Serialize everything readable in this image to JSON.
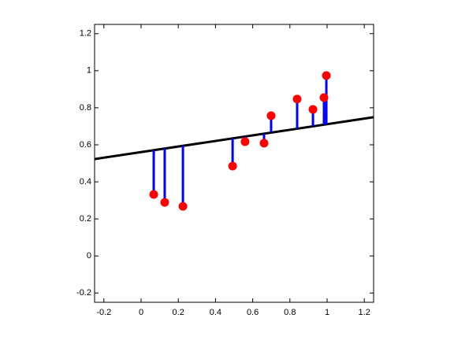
{
  "chart_data": {
    "type": "scatter",
    "x": [
      0.068,
      0.127,
      0.225,
      0.492,
      0.559,
      0.661,
      0.699,
      0.839,
      0.924,
      0.983,
      0.996
    ],
    "values": [
      0.332,
      0.289,
      0.268,
      0.485,
      0.617,
      0.609,
      0.757,
      0.847,
      0.791,
      0.855,
      0.974
    ],
    "fitted": [
      0.571,
      0.58,
      0.595,
      0.635,
      0.645,
      0.661,
      0.666,
      0.687,
      0.7,
      0.709,
      0.711
    ],
    "color": "#ff0000",
    "stem_color": "#0000ff",
    "fit_line": {
      "x": [
        -0.25,
        1.25
      ],
      "y": [
        0.523,
        0.749
      ],
      "color": "#000000"
    },
    "xlim": [
      -0.25,
      1.25
    ],
    "ylim": [
      -0.25,
      1.25
    ],
    "xticks": [
      -0.2,
      0,
      0.2,
      0.4,
      0.6,
      0.8,
      1,
      1.2
    ],
    "yticks": [
      -0.2,
      0,
      0.2,
      0.4,
      0.6,
      0.8,
      1,
      1.2
    ],
    "grid": false
  }
}
